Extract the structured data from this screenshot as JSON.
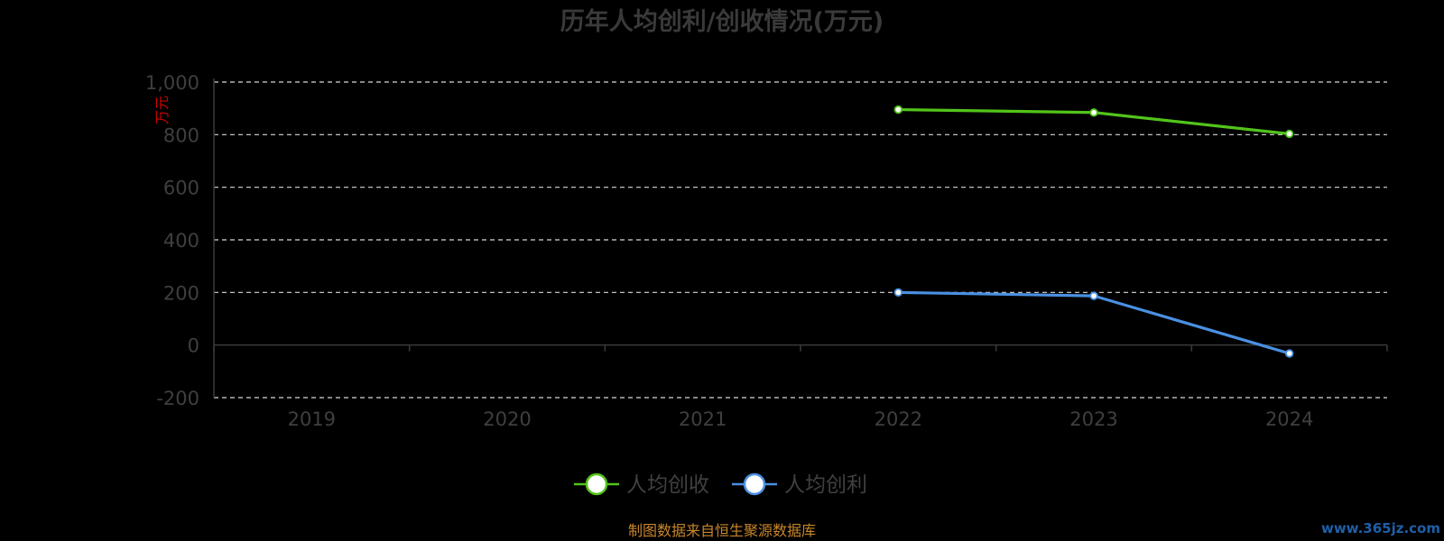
{
  "chart_data": {
    "type": "line",
    "title": "历年人均创利/创收情况(万元)",
    "ylabel": "万元",
    "categories": [
      "2019",
      "2020",
      "2021",
      "2022",
      "2023",
      "2024"
    ],
    "ylim": [
      -200,
      1000
    ],
    "yticks": [
      1000,
      800,
      600,
      400,
      200,
      0,
      -200
    ],
    "ytick_labels": [
      "1,000",
      "800",
      "600",
      "400",
      "200",
      "0",
      "-200"
    ],
    "grid": true,
    "legend_position": "bottom-center",
    "series": [
      {
        "name": "人均创收",
        "color": "#52c41a",
        "values": [
          null,
          null,
          null,
          895.26,
          884.19,
          803.1
        ]
      },
      {
        "name": "人均创利",
        "color": "#4a90e2",
        "values": [
          null,
          null,
          null,
          200,
          187,
          -32
        ]
      }
    ]
  },
  "footer": {
    "source": "制图数据来自恒生聚源数据库"
  },
  "watermark": {
    "text": "www.365jz.com"
  }
}
